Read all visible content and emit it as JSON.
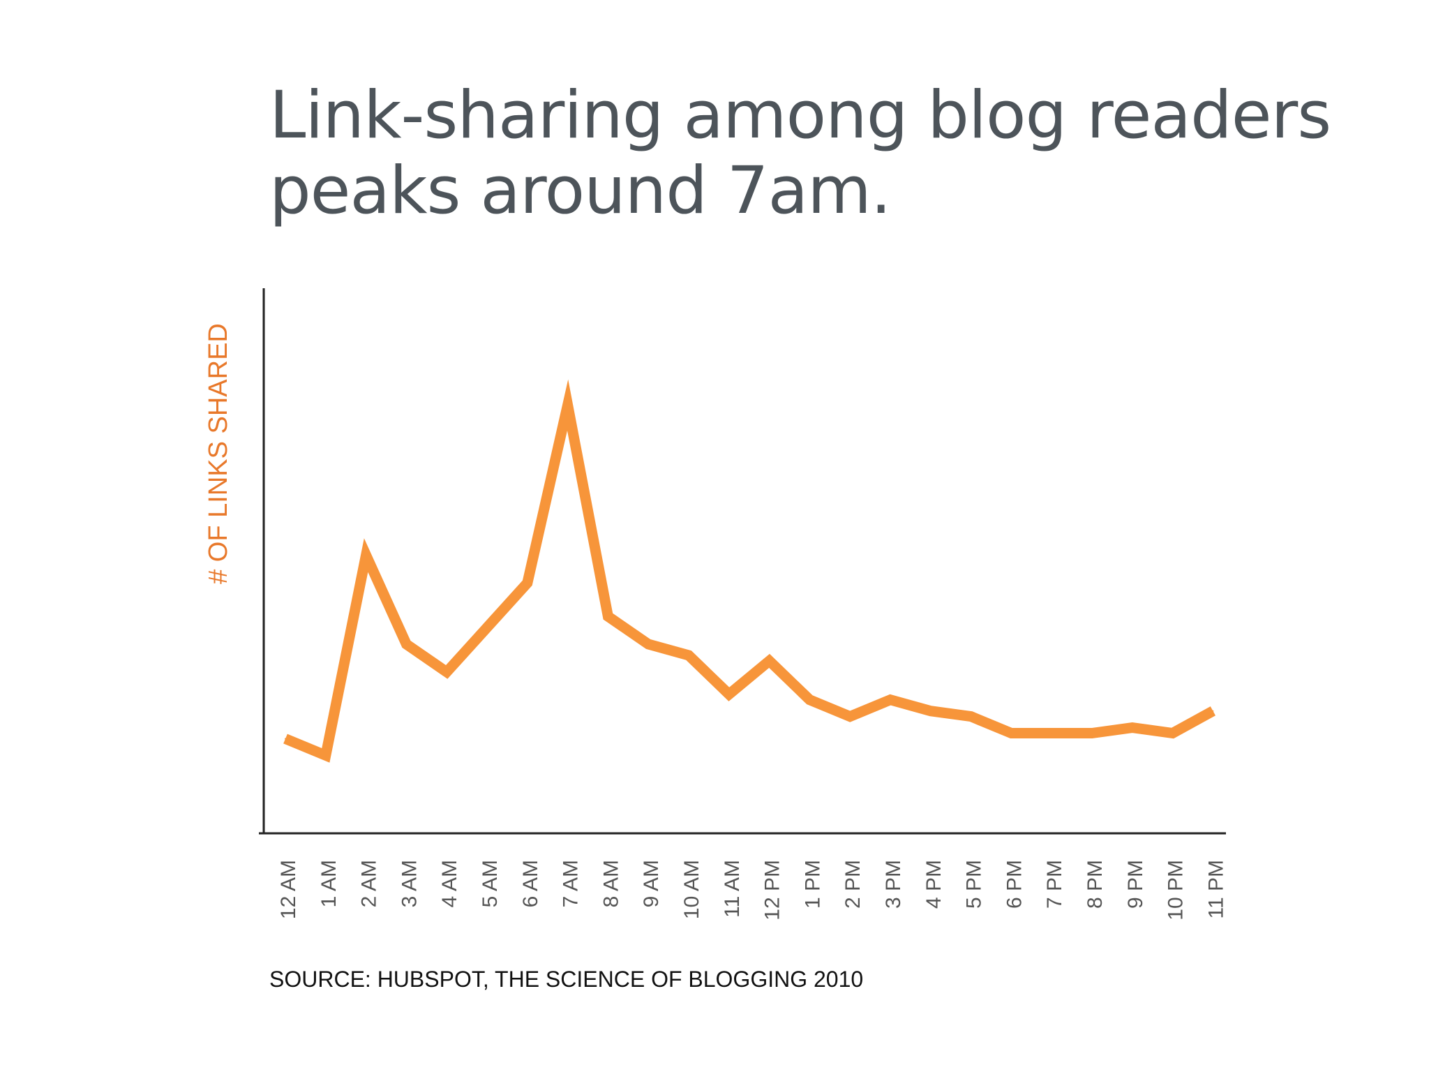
{
  "title": {
    "line1": "Link-sharing among blog readers",
    "line2": "peaks around 7am."
  },
  "source": "SOURCE: HUBSPOT, THE SCIENCE OF BLOGGING 2010",
  "colors": {
    "line": "#f7953a",
    "ylabel": "#e8782a",
    "axis": "#222222",
    "title": "#4d545a",
    "ticks": "#555555"
  },
  "chart_data": {
    "type": "line",
    "title": "Link-sharing among blog readers peaks around 7am.",
    "xlabel": "",
    "ylabel": "# OF LINKS SHARED",
    "categories": [
      "12 AM",
      "1 AM",
      "2 AM",
      "3 AM",
      "4 AM",
      "5 AM",
      "6 AM",
      "7 AM",
      "8 AM",
      "9 AM",
      "10 AM",
      "11 AM",
      "12 PM",
      "1 PM",
      "2 PM",
      "3 PM",
      "4 PM",
      "5 PM",
      "6 PM",
      "7 PM",
      "8 PM",
      "9 PM",
      "10 PM",
      "11 PM"
    ],
    "series": [
      {
        "values": [
          17,
          14,
          50,
          34,
          29,
          37,
          45,
          77,
          39,
          34,
          32,
          25,
          31,
          24,
          21,
          24,
          22,
          21,
          18,
          18,
          18,
          19,
          18,
          22
        ]
      }
    ],
    "ylim": [
      0,
      100
    ],
    "y_ticks_shown": false,
    "grid": false,
    "legend": "none"
  }
}
